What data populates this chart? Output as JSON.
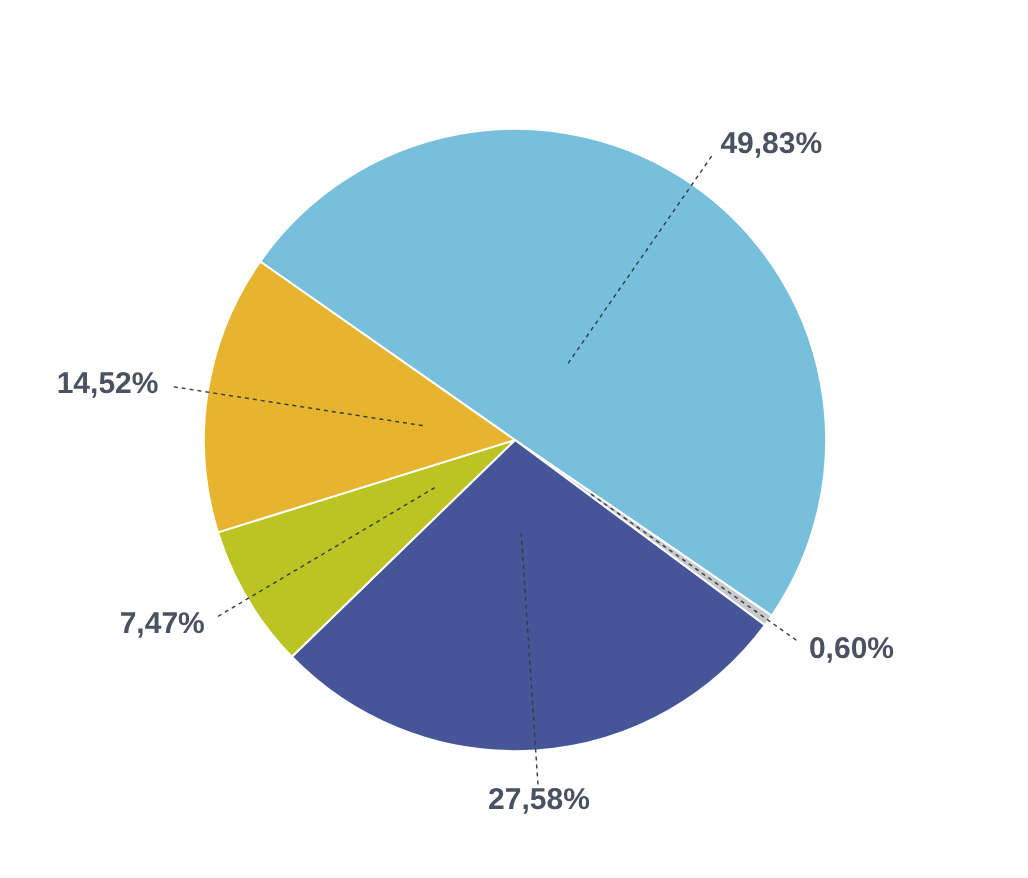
{
  "chart_data": {
    "type": "pie",
    "categories": [
      null,
      null,
      null,
      null,
      null
    ],
    "values": [
      49.83,
      0.6,
      27.58,
      7.47,
      14.52
    ],
    "colors": [
      "#78bfdb",
      "#c8c9cc",
      "#455597",
      "#bcc424",
      "#e6b42e"
    ],
    "value_labels": [
      "49,83%",
      "0,60%",
      "27,58%",
      "7,47%",
      "14,52%"
    ]
  }
}
